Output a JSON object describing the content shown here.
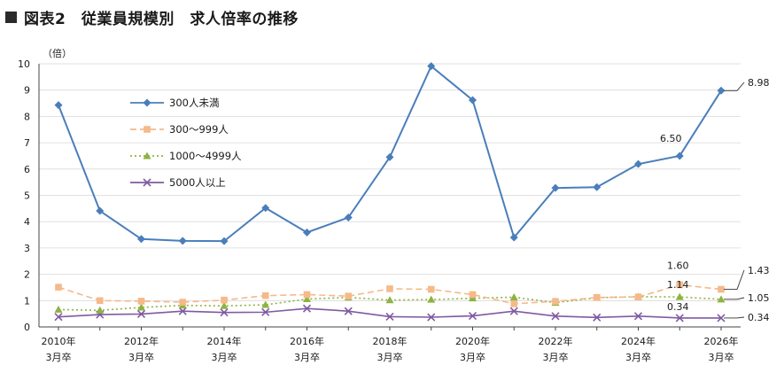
{
  "header": {
    "title": "図表2　従業員規模別　求人倍率の推移"
  },
  "chart_data": {
    "type": "line",
    "title": "図表2　従業員規模別　求人倍率の推移",
    "ylabel": "（倍）",
    "ylim": [
      0,
      10
    ],
    "yticks": [
      0,
      1,
      2,
      3,
      4,
      5,
      6,
      7,
      8,
      9,
      10
    ],
    "grid": true,
    "legend_position": "top-left",
    "x": [
      2010,
      2011,
      2012,
      2013,
      2014,
      2015,
      2016,
      2017,
      2018,
      2019,
      2020,
      2021,
      2022,
      2023,
      2024,
      2025,
      2026
    ],
    "x_tick_labels": [
      {
        "x": 2010,
        "year": "2010年",
        "sub": "3月卒"
      },
      {
        "x": 2012,
        "year": "2012年",
        "sub": "3月卒"
      },
      {
        "x": 2014,
        "year": "2014年",
        "sub": "3月卒"
      },
      {
        "x": 2016,
        "year": "2016年",
        "sub": "3月卒"
      },
      {
        "x": 2018,
        "year": "2018年",
        "sub": "3月卒"
      },
      {
        "x": 2020,
        "year": "2020年",
        "sub": "3月卒"
      },
      {
        "x": 2022,
        "year": "2022年",
        "sub": "3月卒"
      },
      {
        "x": 2024,
        "year": "2024年",
        "sub": "3月卒"
      },
      {
        "x": 2026,
        "year": "2026年",
        "sub": "3月卒"
      }
    ],
    "series": [
      {
        "name": "300人未満",
        "color": "#4a7ebb",
        "dash": "solid",
        "marker": "diamond",
        "values": [
          8.43,
          4.41,
          3.34,
          3.27,
          3.26,
          4.52,
          3.59,
          4.16,
          6.45,
          9.91,
          8.62,
          3.4,
          5.28,
          5.31,
          6.19,
          6.5,
          8.98
        ]
      },
      {
        "name": "300～999人",
        "color": "#f5b98a",
        "dash": "dashed",
        "marker": "square",
        "values": [
          1.51,
          1.0,
          0.98,
          0.94,
          1.02,
          1.19,
          1.23,
          1.17,
          1.45,
          1.43,
          1.23,
          0.88,
          0.97,
          1.12,
          1.14,
          1.6,
          1.43
        ]
      },
      {
        "name": "1000～4999人",
        "color": "#8db341",
        "dash": "dotted",
        "marker": "triangle",
        "values": [
          0.66,
          0.63,
          0.74,
          0.82,
          0.8,
          0.84,
          1.06,
          1.12,
          1.02,
          1.04,
          1.09,
          1.13,
          0.92,
          1.11,
          1.15,
          1.14,
          1.05
        ]
      },
      {
        "name": "5000人以上",
        "color": "#7f5aa2",
        "dash": "solid",
        "marker": "x",
        "values": [
          0.38,
          0.47,
          0.49,
          0.6,
          0.55,
          0.56,
          0.7,
          0.6,
          0.39,
          0.37,
          0.42,
          0.6,
          0.41,
          0.36,
          0.41,
          0.34,
          0.34
        ]
      }
    ],
    "annotations": [
      {
        "series": 0,
        "x": 2025,
        "text": "6.50"
      },
      {
        "series": 1,
        "x": 2025,
        "text": "1.60"
      },
      {
        "series": 2,
        "x": 2025,
        "text": "1.14"
      },
      {
        "series": 3,
        "x": 2025,
        "text": "0.34"
      }
    ],
    "end_labels": [
      {
        "series": 0,
        "text": "8.98"
      },
      {
        "series": 1,
        "text": "1.43"
      },
      {
        "series": 2,
        "text": "1.05"
      },
      {
        "series": 3,
        "text": "0.34"
      }
    ]
  }
}
